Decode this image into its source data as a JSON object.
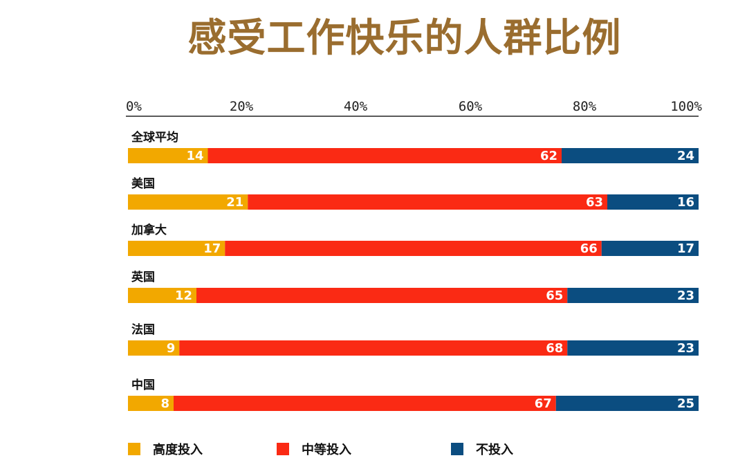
{
  "chart_data": {
    "type": "bar",
    "orientation": "horizontal",
    "stacked": true,
    "title": "感受工作快乐的人群比例",
    "categories": [
      "全球平均",
      "美国",
      "加拿大",
      "英国",
      "法国",
      "中国"
    ],
    "series": [
      {
        "name": "高度投入",
        "color": "#f2a800",
        "values": [
          14,
          21,
          17,
          12,
          9,
          8
        ]
      },
      {
        "name": "中等投入",
        "color": "#fa2a14",
        "values": [
          62,
          63,
          66,
          65,
          68,
          67
        ]
      },
      {
        "name": "不投入",
        "color": "#0b4d80",
        "values": [
          24,
          16,
          17,
          23,
          23,
          25
        ]
      }
    ],
    "xticks": [
      "0%",
      "20%",
      "40%",
      "60%",
      "80%",
      "100%"
    ],
    "xlim": [
      0,
      100
    ],
    "legend_position": "bottom",
    "grid": false
  }
}
